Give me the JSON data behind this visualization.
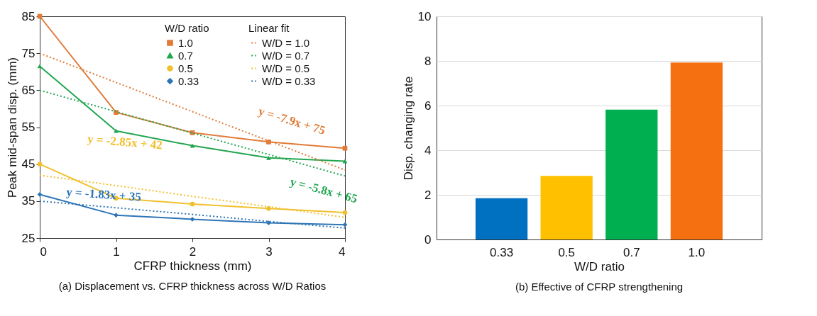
{
  "chart_data": [
    {
      "type": "line",
      "title": "(a) Displacement vs. CFRP thickness across W/D Ratios",
      "xlabel": "CFRP thickness (mm)",
      "ylabel": "Peak mid-span disp. (mm)",
      "legend_title": "W/D ratio",
      "legend": "top right",
      "grid": false,
      "xlim": [
        0,
        4
      ],
      "xticks": [
        0,
        1,
        2,
        3,
        4
      ],
      "ylim": [
        25,
        85
      ],
      "yticks": [
        25,
        35,
        45,
        55,
        65,
        75,
        85
      ],
      "x": [
        0,
        1,
        2,
        3,
        4
      ],
      "series": [
        {
          "name": "1.0",
          "color": "#e07b39",
          "marker": "square",
          "values": [
            85,
            59,
            53.5,
            51,
            49.3
          ]
        },
        {
          "name": "0.7",
          "color": "#22a650",
          "marker": "triangle",
          "values": [
            71.5,
            54,
            50,
            46.7,
            45.8
          ]
        },
        {
          "name": "0.5",
          "color": "#f0c030",
          "marker": "circle",
          "values": [
            45,
            35.8,
            34.2,
            33,
            31.9
          ]
        },
        {
          "name": "0.33",
          "color": "#2e75b6",
          "marker": "diamond",
          "values": [
            36.8,
            31.2,
            30.1,
            29.1,
            28.6
          ]
        },
        {
          "name": "W/D = 1.0",
          "color": "#e07b39",
          "type": "line",
          "line_style": "dotted",
          "marker": "none",
          "values": [
            75,
            67.1,
            59.2,
            51.3,
            43.4
          ]
        },
        {
          "name": "W/D = 0.7",
          "color": "#22a650",
          "type": "line",
          "line_style": "dotted",
          "marker": "none",
          "values": [
            65,
            59.2,
            53.4,
            47.6,
            41.8
          ]
        },
        {
          "name": "W/D = 0.5",
          "color": "#f0c030",
          "type": "line",
          "line_style": "dotted",
          "marker": "none",
          "values": [
            42,
            39.2,
            36.3,
            33.5,
            30.6
          ]
        },
        {
          "name": "W/D = 0.33",
          "color": "#2e75b6",
          "type": "line",
          "line_style": "dotted",
          "marker": "none",
          "values": [
            35,
            33.2,
            31.4,
            29.5,
            27.7
          ]
        }
      ],
      "annotations": [
        "Linear fit",
        "y = -7.9x + 75",
        "y = -5.8x + 65",
        "y = -2.85x + 42",
        "y = -1.83x + 35"
      ]
    },
    {
      "type": "bar",
      "title": "(b) Effective of CFRP strengthening",
      "xlabel": "W/D ratio",
      "ylabel": "Disp. changing rate",
      "categories": [
        "0.33",
        "0.5",
        "0.7",
        "1.0"
      ],
      "values": [
        1.85,
        2.85,
        5.82,
        7.93
      ],
      "colors": [
        "#0070c0",
        "#ffc000",
        "#00b050",
        "#f47010"
      ],
      "ylim": [
        0,
        10
      ],
      "yticks": [
        0,
        2,
        4,
        6,
        8,
        10
      ],
      "grid": "y"
    }
  ]
}
